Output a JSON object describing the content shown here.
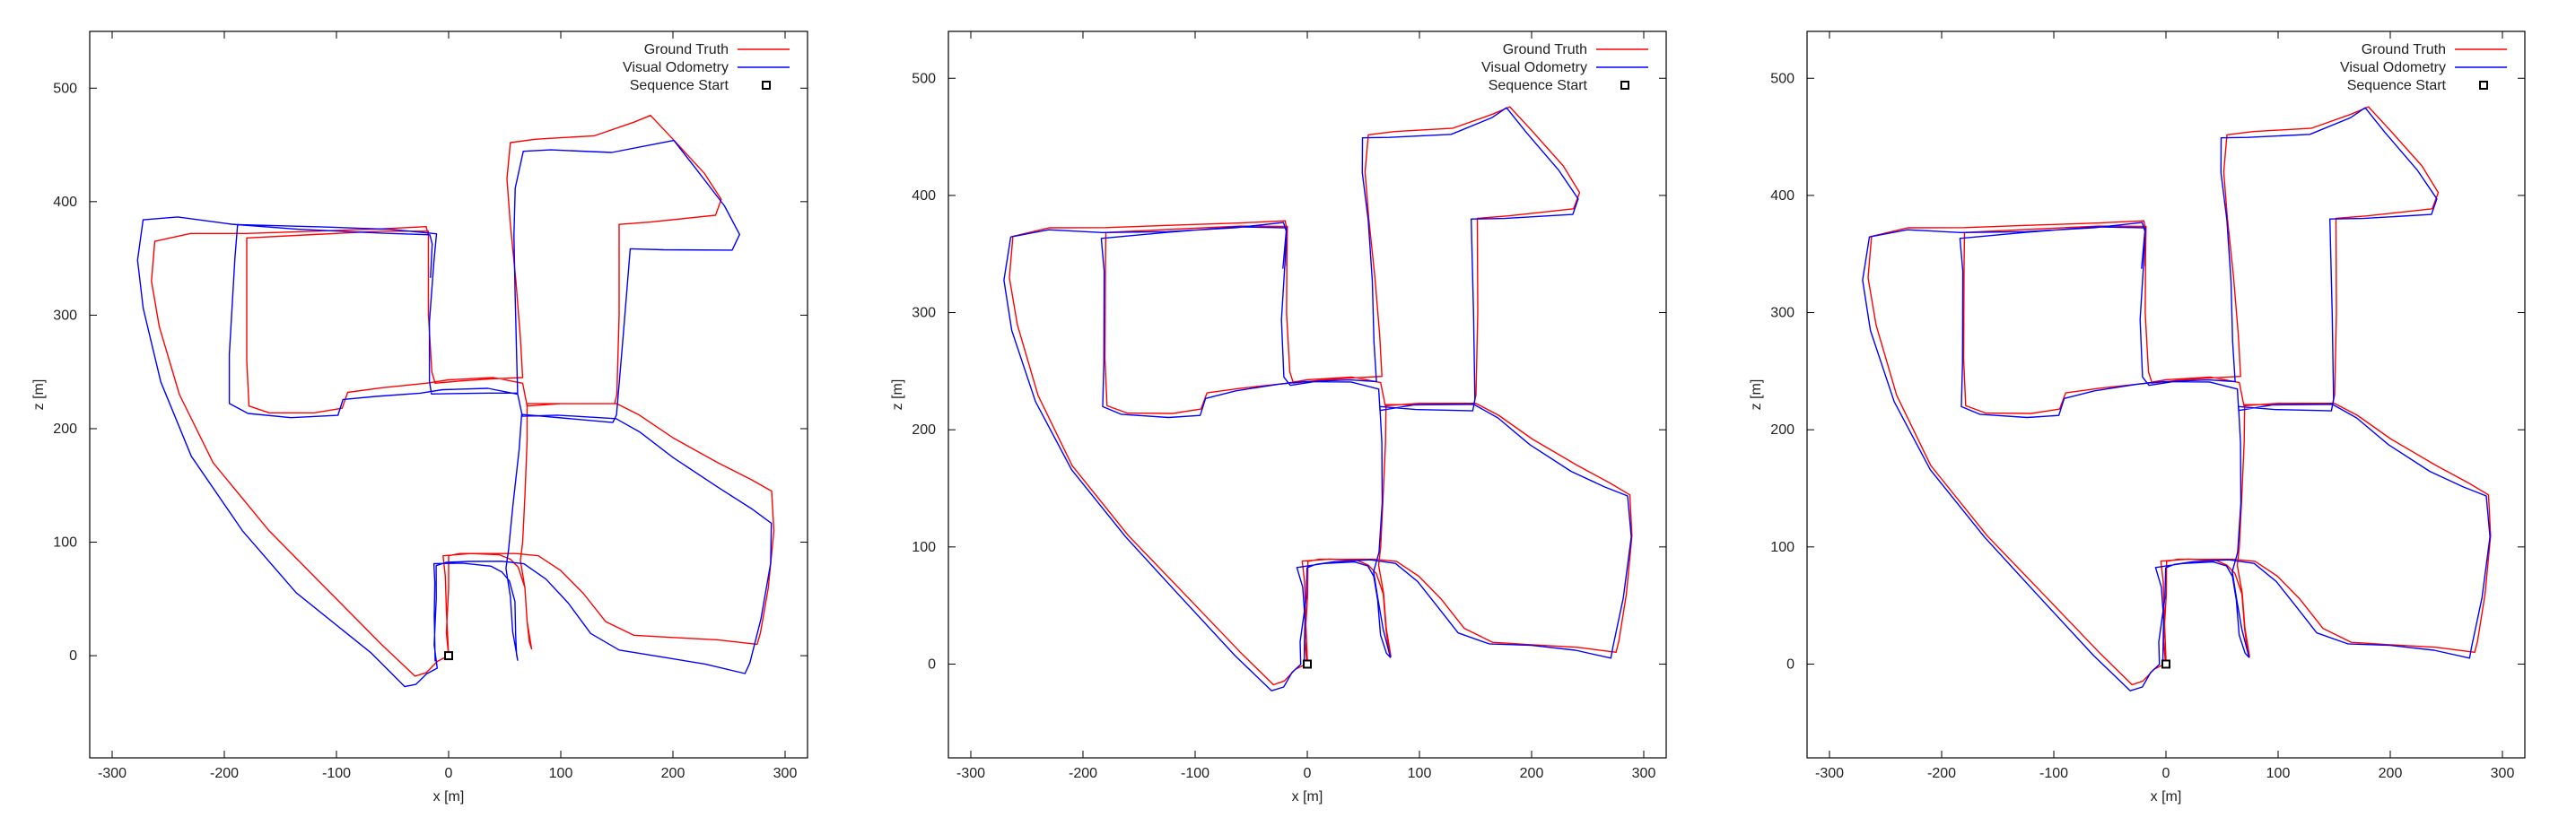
{
  "chart_data": [
    {
      "type": "line",
      "xlabel": "x [m]",
      "ylabel": "z [m]",
      "xlim": [
        -320,
        320
      ],
      "ylim": [
        -90,
        550
      ],
      "xticks": [
        -300,
        -200,
        -100,
        0,
        100,
        200,
        300
      ],
      "yticks": [
        0,
        100,
        200,
        300,
        400,
        500
      ],
      "xtick_labels": [
        "-300",
        "-200",
        "-100",
        "0",
        "100",
        "200",
        "300"
      ],
      "ytick_labels": [
        "0",
        "100",
        "200",
        "300",
        "400",
        "500"
      ],
      "legend_position": "top-right",
      "series": [
        {
          "name": "Ground Truth",
          "color": "#ff0000",
          "x": [
            0,
            0,
            5,
            10,
            50,
            70,
            80,
            70,
            50,
            10,
            5,
            0,
            -5,
            -10,
            -20,
            -30,
            -40,
            -60,
            -80,
            -100,
            -120,
            -140,
            -160,
            -180,
            -200,
            -220,
            -240,
            -260,
            -265,
            -262,
            -258,
            -240,
            -200,
            -140,
            -100,
            -60,
            -30,
            -20,
            -20,
            -18,
            -15,
            -10,
            -8,
            0,
            30,
            50,
            60,
            62,
            60,
            58,
            55,
            50,
            48,
            45,
            40,
            30,
            10,
            -20,
            -60,
            -90,
            -100,
            -105,
            -110,
            -150,
            -175,
            -180,
            -180,
            -178,
            -170,
            -140,
            -100,
            -60,
            -30,
            -25,
            -28,
            -30,
            -30,
            -25,
            -10,
            0,
            30,
            50,
            70,
            100,
            140,
            180,
            200,
            240,
            260,
            280,
            290,
            288,
            285,
            280,
            275,
            270,
            260,
            250,
            220,
            200,
            160,
            140,
            130,
            120,
            100,
            80,
            60,
            50,
            20,
            0
          ],
          "y": [
            0,
            5,
            20,
            40,
            80,
            100,
            110,
            130,
            135,
            140,
            130,
            100,
            80,
            60,
            30,
            0,
            -10,
            -15,
            -10,
            10,
            40,
            70,
            100,
            140,
            180,
            220,
            250,
            290,
            320,
            350,
            368,
            372,
            375,
            378,
            378,
            380,
            381,
            375,
            350,
            300,
            260,
            240,
            238,
            240,
            242,
            243,
            242,
            236,
            230,
            220,
            200,
            170,
            150,
            120,
            100,
            92,
            90,
            89,
            92,
            95,
            95,
            230,
            238,
            237,
            230,
            220,
            300,
            365,
            370,
            372,
            375,
            377,
            377,
            370,
            340,
            300,
            250,
            240,
            240,
            240,
            238,
            236,
            238,
            240,
            350,
            360,
            375,
            380,
            390,
            430,
            470,
            478,
            470,
            455,
            440,
            420,
            405,
            400,
            385,
            380,
            383,
            300,
            230,
            225,
            224,
            222,
            223,
            225,
            228,
            230
          ]
        },
        {
          "name": "Visual Odometry",
          "color": "#0000ff",
          "x": [
            0,
            2,
            5,
            8,
            50,
            70,
            78,
            70,
            50,
            12,
            5,
            2,
            -5,
            -10,
            -22,
            -32,
            -42,
            -62,
            -82,
            -102,
            -122,
            -142,
            -162,
            -182,
            -202,
            -222,
            -242,
            -262,
            -266,
            -264,
            -260,
            -240,
            -200,
            -140,
            -100,
            -60,
            -30,
            -22,
            -22,
            -20,
            -16,
            -12,
            -8,
            0,
            30,
            50,
            58,
            60,
            58,
            56,
            53,
            48,
            46,
            43,
            38,
            28,
            8,
            -22,
            -62,
            -92,
            -102,
            -107,
            -112,
            -152,
            -178,
            -182,
            -182,
            -180,
            -172,
            -142,
            -102,
            -62,
            -32,
            -27,
            -30,
            -32,
            -32,
            -27,
            -12,
            0,
            28,
            48,
            68,
            98,
            138,
            178,
            198,
            238,
            258,
            278,
            288,
            286,
            283,
            278,
            273,
            268,
            258,
            248,
            218,
            198,
            158,
            138,
            128,
            118,
            98,
            78,
            58,
            48,
            18,
            0
          ],
          "y": [
            0,
            5,
            20,
            40,
            80,
            100,
            110,
            128,
            134,
            139,
            128,
            100,
            78,
            58,
            28,
            -2,
            -12,
            -17,
            -12,
            8,
            38,
            68,
            98,
            138,
            178,
            218,
            248,
            288,
            318,
            348,
            366,
            368,
            370,
            372,
            373,
            375,
            376,
            371,
            348,
            298,
            258,
            240,
            238,
            240,
            242,
            243,
            242,
            236,
            230,
            220,
            200,
            170,
            150,
            120,
            100,
            92,
            90,
            89,
            92,
            95,
            95,
            228,
            236,
            235,
            228,
            218,
            298,
            362,
            366,
            368,
            370,
            372,
            373,
            366,
            338,
            298,
            248,
            240,
            240,
            240,
            238,
            236,
            238,
            240,
            348,
            358,
            372,
            376,
            386,
            428,
            468,
            476,
            468,
            452,
            438,
            418,
            402,
            396,
            382,
            378,
            380,
            298,
            228,
            224,
            222,
            220,
            222,
            224,
            226,
            230
          ]
        },
        {
          "name": "Sequence Start",
          "color": "#000000",
          "x": [
            0
          ],
          "y": [
            0
          ]
        }
      ]
    },
    {
      "type": "line",
      "xlabel": "x [m]",
      "ylabel": "z [m]",
      "xlim": [
        -320,
        320
      ],
      "ylim": [
        -80,
        540
      ],
      "xticks": [
        -300,
        -200,
        -100,
        0,
        100,
        200,
        300
      ],
      "yticks": [
        0,
        100,
        200,
        300,
        400,
        500
      ],
      "xtick_labels": [
        "-300",
        "-200",
        "-100",
        "0",
        "100",
        "200",
        "300"
      ],
      "ytick_labels": [
        "0",
        "100",
        "200",
        "300",
        "400",
        "500"
      ],
      "legend_position": "top-right",
      "series": [
        {
          "name": "Ground Truth",
          "color": "#ff0000",
          "x": [
            0,
            -2,
            -4,
            -6,
            -10,
            -30,
            -60,
            -100,
            -140,
            -180,
            -220,
            -250,
            -262,
            -265,
            -260,
            -240,
            -200,
            -140,
            -80,
            -30,
            -20,
            -18,
            -14,
            -12,
            0,
            40,
            68,
            70,
            68,
            62,
            60,
            58,
            52,
            30,
            10,
            0,
            20,
            40,
            55,
            70,
            100,
            140,
            170,
            200,
            240,
            280,
            290,
            285,
            275,
            270,
            240,
            200,
            165,
            140,
            110,
            80,
            60,
            50,
            30,
            10,
            0,
            -20,
            -40,
            -100,
            -100,
            -60,
            -20,
            0,
            -10,
            -20,
            -25,
            -30,
            -100,
            -180,
            -185,
            -180,
            -150,
            -100,
            -60,
            -30,
            -20,
            -10,
            0,
            60,
            70,
            140,
            150,
            155,
            150,
            240,
            245,
            240,
            180,
            170,
            60,
            55,
            58,
            65,
            68,
            70,
            72,
            75,
            150,
            160
          ],
          "y": [
            0,
            30,
            60,
            80,
            89,
            90,
            92,
            94,
            95,
            95,
            93,
            92,
            90,
            90,
            89,
            88,
            87,
            86,
            86,
            87,
            89,
            91,
            92,
            92,
            92,
            90,
            88,
            70,
            50,
            20,
            10,
            8,
            8,
            10,
            15,
            20,
            30,
            40,
            60,
            100,
            100,
            100,
            100,
            100,
            100,
            100,
            100,
            100,
            100,
            100,
            100,
            100,
            100,
            100,
            100,
            100,
            100,
            100,
            100,
            100,
            100,
            100,
            100,
            100,
            100,
            100,
            100,
            100,
            100,
            100,
            100,
            100,
            100,
            100,
            100,
            100,
            100,
            100,
            100,
            100,
            100,
            100,
            100,
            100,
            100,
            100,
            100,
            100,
            100,
            100,
            100,
            100,
            100,
            100,
            100,
            100,
            100,
            100,
            100,
            100,
            100,
            100,
            100,
            100
          ]
        },
        {
          "name": "Visual Odometry",
          "color": "#0000ff",
          "x": [
            0
          ],
          "y": [
            0
          ]
        },
        {
          "name": "Sequence Start",
          "color": "#000000",
          "x": [
            0
          ],
          "y": [
            0
          ]
        }
      ]
    },
    {
      "type": "line",
      "xlabel": "x [m]",
      "ylabel": "z [m]",
      "xlim": [
        -320,
        320
      ],
      "ylim": [
        -80,
        540
      ],
      "xticks": [
        -300,
        -200,
        -100,
        0,
        100,
        200,
        300
      ],
      "yticks": [
        0,
        100,
        200,
        300,
        400,
        500
      ],
      "xtick_labels": [
        "-300",
        "-200",
        "-100",
        "0",
        "100",
        "200",
        "300"
      ],
      "ytick_labels": [
        "0",
        "100",
        "200",
        "300",
        "400",
        "500"
      ],
      "legend_position": "top-right",
      "series": [
        {
          "name": "Ground Truth",
          "color": "#ff0000",
          "x": [
            0
          ],
          "y": [
            0
          ]
        },
        {
          "name": "Visual Odometry",
          "color": "#0000ff",
          "x": [
            0
          ],
          "y": [
            0
          ]
        },
        {
          "name": "Sequence Start",
          "color": "#000000",
          "x": [
            0
          ],
          "y": [
            0
          ]
        }
      ]
    }
  ]
}
